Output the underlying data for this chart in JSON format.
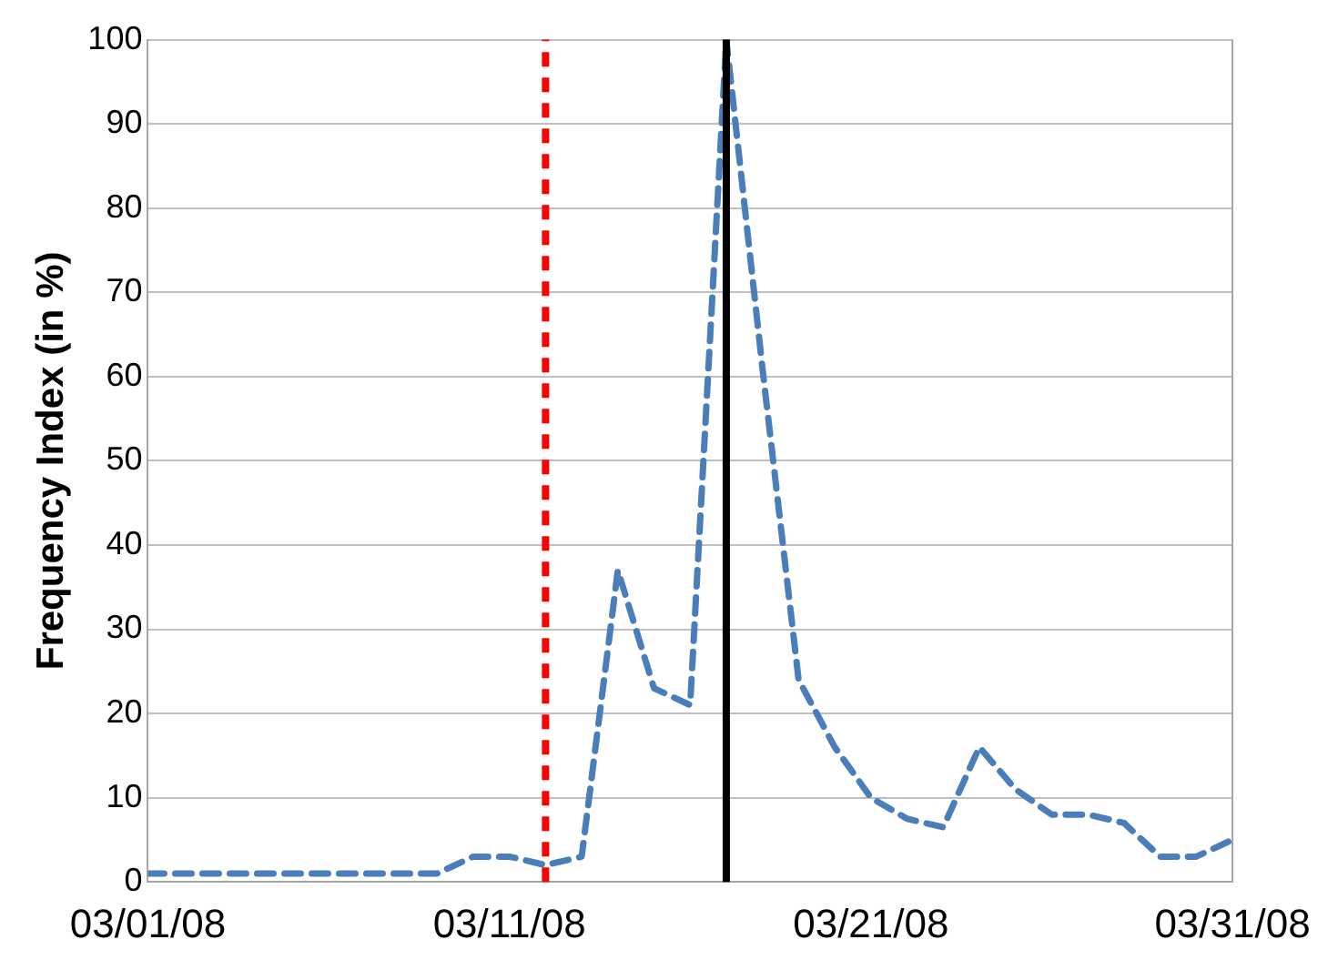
{
  "chart_data": {
    "type": "line",
    "ylabel": "Frequency Index (in %)",
    "x": [
      "--03-01",
      "--03-02",
      "--03-03",
      "--03-04",
      "--03-05",
      "--03-06",
      "--03-07",
      "--03-08",
      "--03-09",
      "--03-10",
      "--03-11",
      "--03-12",
      "--03-13",
      "--03-14",
      "--03-15",
      "--03-16",
      "--03-17",
      "--03-18",
      "--03-19",
      "--03-20",
      "--03-21",
      "--03-22",
      "--03-23",
      "--03-24",
      "--03-25",
      "--03-26",
      "--03-27",
      "--03-28",
      "--03-29",
      "--03-30",
      "--03-31"
    ],
    "series": [
      {
        "color": "#4a7ebb",
        "values": [
          1,
          1,
          1,
          1,
          1,
          1,
          1,
          1,
          1,
          3,
          3,
          2,
          3,
          37,
          23,
          21,
          100,
          61,
          24,
          16,
          10,
          7.5,
          6.5,
          16,
          11,
          8,
          8,
          7,
          3,
          3,
          5
        ]
      }
    ],
    "xlim": [
      "--03-01",
      "--03-31"
    ],
    "xticks": [
      {
        "value": "--03-01",
        "label": "03/01/08"
      },
      {
        "value": "--03-11",
        "label": "03/11/08"
      },
      {
        "value": "--03-21",
        "label": "03/21/08"
      },
      {
        "value": "--03-31",
        "label": "03/31/08"
      }
    ],
    "ylim": [
      0,
      100
    ],
    "yticks": [
      0,
      10,
      20,
      30,
      40,
      50,
      60,
      70,
      80,
      90,
      100
    ],
    "ref_lines": [
      {
        "axis": "x",
        "value": "--03-12",
        "color": "#ff0000",
        "line_style": "dashed"
      },
      {
        "axis": "x",
        "value": "--03-17",
        "color": "#000000",
        "line_style": "solid"
      }
    ],
    "grid": "y",
    "legend": false,
    "line_style": "dashed",
    "marker": "none"
  }
}
